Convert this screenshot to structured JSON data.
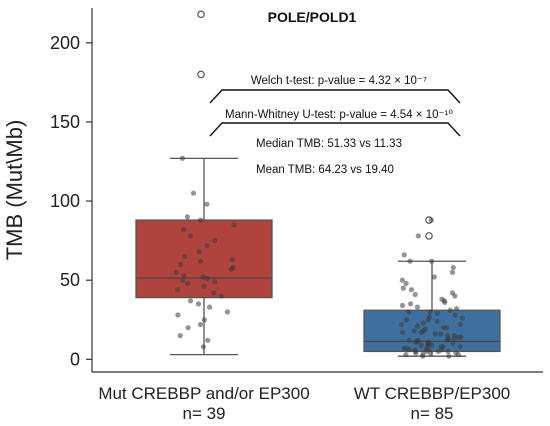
{
  "chart_data": {
    "type": "box",
    "title": "POLE/POLD1",
    "ylabel": "TMB (Mut\\Mb)",
    "ylim": [
      -8,
      222
    ],
    "yticks": [
      0,
      50,
      100,
      150,
      200
    ],
    "grid": false,
    "categories": [
      "Mut CREBBP and/or EP300",
      "WT CREBBP/EP300"
    ],
    "n_labels": [
      "n= 39",
      "n= 85"
    ],
    "colors": [
      "#b1433e",
      "#3f6f9e"
    ],
    "boxes": [
      {
        "q1": 39,
        "median": 51.33,
        "q3": 88,
        "whisker_low": 3,
        "whisker_high": 127,
        "outliers": [
          180,
          218
        ]
      },
      {
        "q1": 5,
        "median": 11.33,
        "q3": 31,
        "whisker_low": 2,
        "whisker_high": 62,
        "outliers": [
          78,
          88
        ]
      }
    ],
    "points": [
      [
        8,
        12,
        15,
        20,
        22,
        25,
        28,
        30,
        33,
        35,
        37,
        40,
        42,
        44,
        46,
        48,
        49,
        50,
        51,
        52,
        53,
        55,
        57,
        58,
        60,
        62,
        63,
        65,
        68,
        72,
        75,
        78,
        82,
        85,
        88,
        90,
        98,
        105,
        127
      ],
      [
        2,
        2,
        3,
        3,
        3,
        4,
        4,
        4,
        5,
        5,
        5,
        5,
        6,
        6,
        6,
        6,
        7,
        7,
        7,
        8,
        8,
        8,
        9,
        9,
        9,
        10,
        10,
        10,
        11,
        11,
        11,
        12,
        12,
        12,
        13,
        13,
        14,
        14,
        15,
        15,
        16,
        16,
        17,
        17,
        18,
        18,
        19,
        20,
        20,
        21,
        22,
        22,
        23,
        24,
        25,
        25,
        26,
        27,
        28,
        29,
        30,
        30,
        31,
        32,
        33,
        34,
        35,
        36,
        37,
        38,
        40,
        41,
        42,
        44,
        45,
        48,
        50,
        52,
        55,
        58,
        62,
        62,
        66,
        78,
        88
      ]
    ],
    "annotations": [
      "Welch t-test: p-value = 4.32 × 10⁻⁷",
      "Mann-Whitney U-test: p-value = 4.54 × 10⁻¹⁰",
      "Median TMB: 51.33 vs 11.33",
      "Mean TMB: 64.23  vs 19.40"
    ]
  }
}
